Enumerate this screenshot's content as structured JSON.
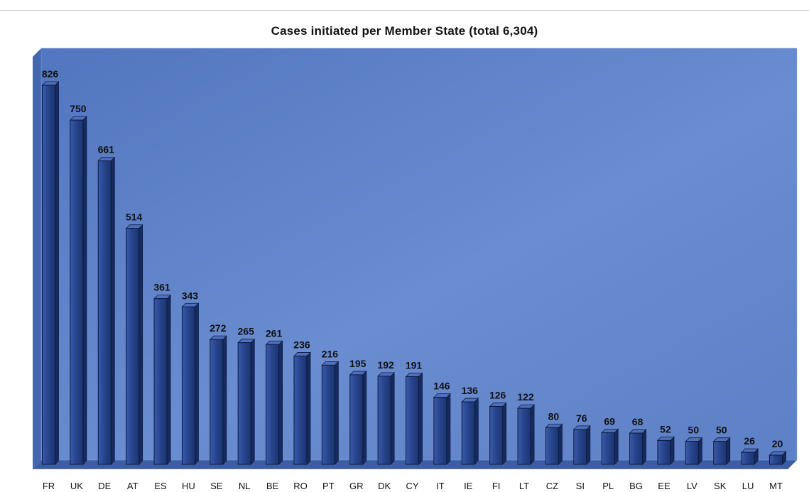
{
  "chart_data": {
    "type": "bar",
    "title": "Cases initiated per Member State (total 6,304)",
    "xlabel": "",
    "ylabel": "",
    "ylim": [
      0,
      850
    ],
    "grid": false,
    "legend": "none",
    "categories": [
      "FR",
      "UK",
      "DE",
      "AT",
      "ES",
      "HU",
      "SE",
      "NL",
      "BE",
      "RO",
      "PT",
      "GR",
      "DK",
      "CY",
      "IT",
      "IE",
      "FI",
      "LT",
      "CZ",
      "SI",
      "PL",
      "BG",
      "EE",
      "LV",
      "SK",
      "LU",
      "MT"
    ],
    "values": [
      826,
      750,
      661,
      514,
      361,
      343,
      272,
      265,
      261,
      236,
      216,
      195,
      192,
      191,
      146,
      136,
      126,
      122,
      80,
      76,
      69,
      68,
      52,
      50,
      50,
      26,
      20
    ],
    "colors": {
      "bar_front": "#243f86",
      "bar_side": "#152a5e",
      "bar_top": "#4f6fbd",
      "plot_background": "#5477bd",
      "plot_floor": "#3b5da6",
      "plot_side": "#4366ad"
    }
  }
}
